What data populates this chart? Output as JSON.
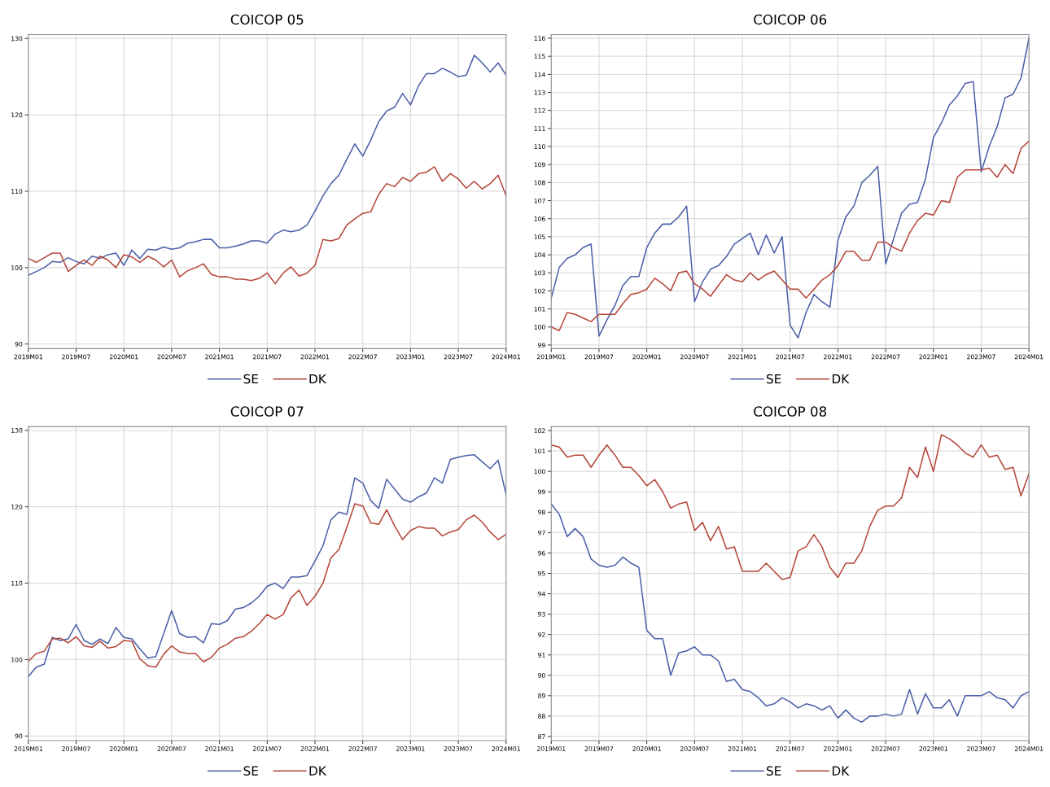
{
  "chart_data": [
    {
      "type": "line",
      "title": "COICOP 05",
      "categories": [
        "2019M01",
        null,
        null,
        null,
        null,
        null,
        "2019M07",
        null,
        null,
        null,
        null,
        null,
        "2020M01",
        null,
        null,
        null,
        null,
        null,
        "2020M07",
        null,
        null,
        null,
        null,
        null,
        "2021M01",
        null,
        null,
        null,
        null,
        null,
        "2021M07",
        null,
        null,
        null,
        null,
        null,
        "2022M01",
        null,
        null,
        null,
        null,
        null,
        "2022M07",
        null,
        null,
        null,
        null,
        null,
        "2023M01",
        null,
        null,
        null,
        null,
        null,
        "2023M07",
        null,
        null,
        null,
        null,
        null,
        "2024M01"
      ],
      "ylim": [
        89.4,
        130.5
      ],
      "yticks": [
        90,
        100,
        110,
        120,
        130
      ],
      "grid": true,
      "legend": "bottom",
      "series": [
        {
          "name": "SE",
          "color": "#4a5ea8",
          "values": [
            99.0,
            99.5,
            100.0,
            100.8,
            100.7,
            101.3,
            100.8,
            100.5,
            101.5,
            101.2,
            101.7,
            101.9,
            100.3,
            102.3,
            101.2,
            102.4,
            102.3,
            102.7,
            102.4,
            102.6,
            103.2,
            103.4,
            103.7,
            103.7,
            102.6,
            102.6,
            102.8,
            103.1,
            103.5,
            103.5,
            103.2,
            104.4,
            104.9,
            104.7,
            104.9,
            105.6,
            107.4,
            109.4,
            111.0,
            112.1,
            114.2,
            116.2,
            114.6,
            116.7,
            119.1,
            120.5,
            121.0,
            122.8,
            121.3,
            123.8,
            125.4,
            125.4,
            126.1,
            125.6,
            125.0,
            125.2,
            127.8,
            126.8,
            125.6,
            126.8,
            125.2
          ]
        },
        {
          "name": "DK",
          "color": "#b5453a",
          "values": [
            101.2,
            100.7,
            101.3,
            101.9,
            101.9,
            99.5,
            100.3,
            101.0,
            100.3,
            101.5,
            101.0,
            100.0,
            101.7,
            101.4,
            100.7,
            101.5,
            101.0,
            100.1,
            101.0,
            98.8,
            99.6,
            100.0,
            100.5,
            99.1,
            98.8,
            98.8,
            98.5,
            98.5,
            98.3,
            98.6,
            99.3,
            97.9,
            99.3,
            100.1,
            98.9,
            99.3,
            100.3,
            103.7,
            103.5,
            103.8,
            105.6,
            106.4,
            107.1,
            107.3,
            109.6,
            111.0,
            110.6,
            111.8,
            111.3,
            112.3,
            112.5,
            113.2,
            111.3,
            112.3,
            111.6,
            110.4,
            111.3,
            110.3,
            111.0,
            112.1,
            109.4
          ]
        }
      ]
    },
    {
      "type": "line",
      "title": "COICOP 06",
      "categories": [
        "2019M01",
        null,
        null,
        null,
        null,
        null,
        "2019M07",
        null,
        null,
        null,
        null,
        null,
        "2020M01",
        null,
        null,
        null,
        null,
        null,
        "2020M07",
        null,
        null,
        null,
        null,
        null,
        "2021M01",
        null,
        null,
        null,
        null,
        null,
        "2021M07",
        null,
        null,
        null,
        null,
        null,
        "2022M01",
        null,
        null,
        null,
        null,
        null,
        "2022M07",
        null,
        null,
        null,
        null,
        null,
        "2023M01",
        null,
        null,
        null,
        null,
        null,
        "2023M07",
        null,
        null,
        null,
        null,
        null,
        "2024M01"
      ],
      "ylim": [
        98.8,
        116.2
      ],
      "yticks": [
        99,
        100,
        101,
        102,
        103,
        104,
        105,
        106,
        107,
        108,
        109,
        110,
        111,
        112,
        113,
        114,
        115,
        116
      ],
      "grid": true,
      "legend": "bottom",
      "series": [
        {
          "name": "SE",
          "color": "#4a5ea8",
          "values": [
            101.6,
            103.3,
            103.8,
            104.0,
            104.4,
            104.6,
            99.5,
            100.4,
            101.2,
            102.3,
            102.8,
            102.8,
            104.4,
            105.2,
            105.7,
            105.7,
            106.1,
            106.7,
            101.4,
            102.5,
            103.2,
            103.4,
            103.9,
            104.6,
            104.9,
            105.2,
            104.0,
            105.1,
            104.1,
            105.0,
            100.1,
            99.4,
            100.8,
            101.8,
            101.4,
            101.1,
            104.8,
            106.1,
            106.7,
            108.0,
            108.4,
            108.9,
            103.5,
            104.9,
            106.3,
            106.8,
            106.9,
            108.2,
            110.5,
            111.3,
            112.3,
            112.8,
            113.5,
            113.6,
            108.6,
            110.0,
            111.1,
            112.7,
            112.9,
            113.8,
            116.0
          ]
        },
        {
          "name": "DK",
          "color": "#b5453a",
          "values": [
            100.0,
            99.8,
            100.8,
            100.7,
            100.5,
            100.3,
            100.7,
            100.7,
            100.7,
            101.3,
            101.8,
            101.9,
            102.1,
            102.7,
            102.4,
            102.0,
            103.0,
            103.1,
            102.4,
            102.1,
            101.7,
            102.3,
            102.9,
            102.6,
            102.5,
            103.0,
            102.6,
            102.9,
            103.1,
            102.6,
            102.1,
            102.1,
            101.6,
            102.1,
            102.6,
            102.9,
            103.4,
            104.2,
            104.2,
            103.7,
            103.7,
            104.7,
            104.7,
            104.4,
            104.2,
            105.2,
            105.9,
            106.3,
            106.2,
            107.0,
            106.9,
            108.3,
            108.7,
            108.7,
            108.7,
            108.8,
            108.3,
            109.0,
            108.5,
            109.9,
            110.3
          ]
        }
      ]
    },
    {
      "type": "line",
      "title": "COICOP 07",
      "categories": [
        "2019M01",
        null,
        null,
        null,
        null,
        null,
        "2019M07",
        null,
        null,
        null,
        null,
        null,
        "2020M01",
        null,
        null,
        null,
        null,
        null,
        "2020M07",
        null,
        null,
        null,
        null,
        null,
        "2021M01",
        null,
        null,
        null,
        null,
        null,
        "2021M07",
        null,
        null,
        null,
        null,
        null,
        "2022M01",
        null,
        null,
        null,
        null,
        null,
        "2022M07",
        null,
        null,
        null,
        null,
        null,
        "2023M01",
        null,
        null,
        null,
        null,
        null,
        "2023M07",
        null,
        null,
        null,
        null,
        null,
        "2024M01"
      ],
      "ylim": [
        89.4,
        130.5
      ],
      "yticks": [
        90,
        100,
        110,
        120,
        130
      ],
      "grid": true,
      "legend": "bottom",
      "series": [
        {
          "name": "SE",
          "color": "#4a5ea8",
          "values": [
            97.8,
            99.0,
            99.4,
            102.9,
            102.5,
            102.7,
            104.6,
            102.5,
            102.0,
            102.7,
            102.1,
            104.2,
            102.9,
            102.7,
            101.4,
            100.2,
            100.4,
            103.4,
            106.4,
            103.4,
            102.9,
            103.0,
            102.2,
            104.7,
            104.6,
            105.1,
            106.6,
            106.8,
            107.4,
            108.3,
            109.6,
            110.0,
            109.3,
            110.8,
            110.8,
            111.0,
            112.9,
            114.9,
            118.3,
            119.3,
            119.0,
            123.8,
            123.1,
            120.8,
            119.8,
            123.6,
            122.3,
            121.0,
            120.6,
            121.3,
            121.8,
            123.8,
            123.1,
            126.2,
            126.5,
            126.7,
            126.8,
            125.9,
            125.0,
            126.1,
            121.6
          ]
        },
        {
          "name": "DK",
          "color": "#b5453a",
          "values": [
            99.8,
            100.8,
            101.1,
            102.7,
            102.8,
            102.2,
            103.0,
            101.8,
            101.6,
            102.4,
            101.5,
            101.7,
            102.5,
            102.4,
            100.1,
            99.2,
            99.0,
            100.7,
            101.8,
            101.0,
            100.8,
            100.8,
            99.7,
            100.3,
            101.5,
            102.0,
            102.8,
            103.0,
            103.7,
            104.7,
            105.9,
            105.3,
            105.9,
            108.1,
            109.1,
            107.1,
            108.3,
            110.0,
            113.3,
            114.4,
            117.3,
            120.4,
            120.1,
            117.9,
            117.7,
            119.6,
            117.5,
            115.7,
            116.9,
            117.4,
            117.2,
            117.2,
            116.2,
            116.7,
            117.0,
            118.3,
            118.9,
            118.0,
            116.7,
            115.7,
            116.4
          ]
        }
      ]
    },
    {
      "type": "line",
      "title": "COICOP 08",
      "categories": [
        "2019M01",
        null,
        null,
        null,
        null,
        null,
        "2019M07",
        null,
        null,
        null,
        null,
        null,
        "2020M01",
        null,
        null,
        null,
        null,
        null,
        "2020M07",
        null,
        null,
        null,
        null,
        null,
        "2021M01",
        null,
        null,
        null,
        null,
        null,
        "2021M07",
        null,
        null,
        null,
        null,
        null,
        "2022M01",
        null,
        null,
        null,
        null,
        null,
        "2022M07",
        null,
        null,
        null,
        null,
        null,
        "2023M01",
        null,
        null,
        null,
        null,
        null,
        "2023M07",
        null,
        null,
        null,
        null,
        null,
        "2024M01"
      ],
      "ylim": [
        86.8,
        102.2
      ],
      "yticks": [
        87,
        88,
        89,
        90,
        91,
        92,
        93,
        94,
        95,
        96,
        97,
        98,
        99,
        100,
        101,
        102
      ],
      "grid": true,
      "legend": "bottom",
      "series": [
        {
          "name": "SE",
          "color": "#4a5ea8",
          "values": [
            98.4,
            97.9,
            96.8,
            97.2,
            96.8,
            95.7,
            95.4,
            95.3,
            95.4,
            95.8,
            95.5,
            95.3,
            92.2,
            91.8,
            91.8,
            90.0,
            91.1,
            91.2,
            91.4,
            91.0,
            91.0,
            90.7,
            89.7,
            89.8,
            89.3,
            89.2,
            88.9,
            88.5,
            88.6,
            88.9,
            88.7,
            88.4,
            88.6,
            88.5,
            88.3,
            88.5,
            87.9,
            88.3,
            87.9,
            87.7,
            88.0,
            88.0,
            88.1,
            88.0,
            88.1,
            89.3,
            88.1,
            89.1,
            88.4,
            88.4,
            88.8,
            88.0,
            89.0,
            89.0,
            89.0,
            89.2,
            88.9,
            88.8,
            88.4,
            89.0,
            89.2
          ]
        },
        {
          "name": "DK",
          "color": "#b5453a",
          "values": [
            101.3,
            101.2,
            100.7,
            100.8,
            100.8,
            100.2,
            100.8,
            101.3,
            100.8,
            100.2,
            100.2,
            99.8,
            99.3,
            99.6,
            99.0,
            98.2,
            98.4,
            98.5,
            97.1,
            97.5,
            96.6,
            97.3,
            96.2,
            96.3,
            95.1,
            95.1,
            95.1,
            95.5,
            95.1,
            94.7,
            94.8,
            96.1,
            96.3,
            96.9,
            96.3,
            95.3,
            94.8,
            95.5,
            95.5,
            96.1,
            97.3,
            98.1,
            98.3,
            98.3,
            98.7,
            100.2,
            99.7,
            101.2,
            100.0,
            101.8,
            101.6,
            101.3,
            100.9,
            100.7,
            101.3,
            100.7,
            100.8,
            100.1,
            100.2,
            98.8,
            99.9
          ]
        }
      ]
    }
  ]
}
